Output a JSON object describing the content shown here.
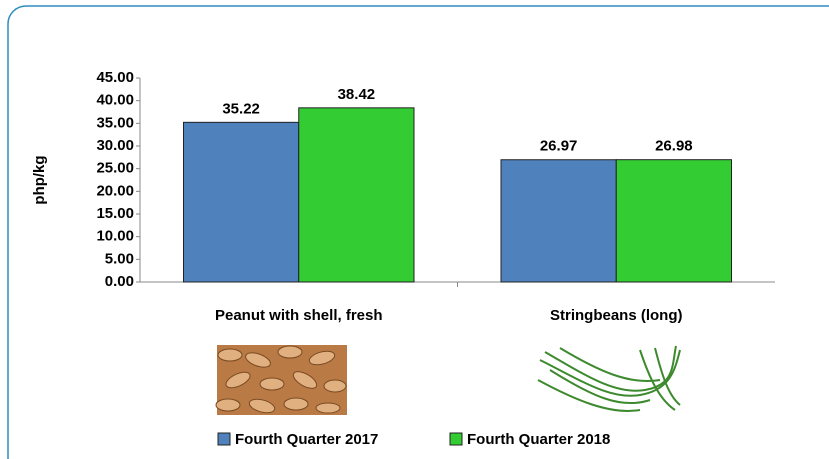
{
  "chart_data": {
    "type": "bar",
    "categories": [
      "Peanut with shell, fresh",
      "Stringbeans (long)"
    ],
    "series": [
      {
        "name": "Fourth Quarter 2017",
        "color": "#4f81bd",
        "values": [
          35.22,
          26.97
        ]
      },
      {
        "name": "Fourth Quarter 2018",
        "color": "#33cc33",
        "values": [
          38.42,
          26.98
        ]
      }
    ],
    "ylabel": "php/kg",
    "ylim": [
      0,
      45
    ],
    "yticks": [
      {
        "value": 0,
        "label": "0.00"
      },
      {
        "value": 5,
        "label": "5.00"
      },
      {
        "value": 10,
        "label": "10.00"
      },
      {
        "value": 15,
        "label": "15.00"
      },
      {
        "value": 20,
        "label": "20.00"
      },
      {
        "value": 25,
        "label": "25.00"
      },
      {
        "value": 30,
        "label": "30.00"
      },
      {
        "value": 35,
        "label": "35.00"
      },
      {
        "value": 40,
        "label": "40.00"
      },
      {
        "value": 45,
        "label": "45.00"
      }
    ],
    "grid": false,
    "legend": "bottom"
  }
}
